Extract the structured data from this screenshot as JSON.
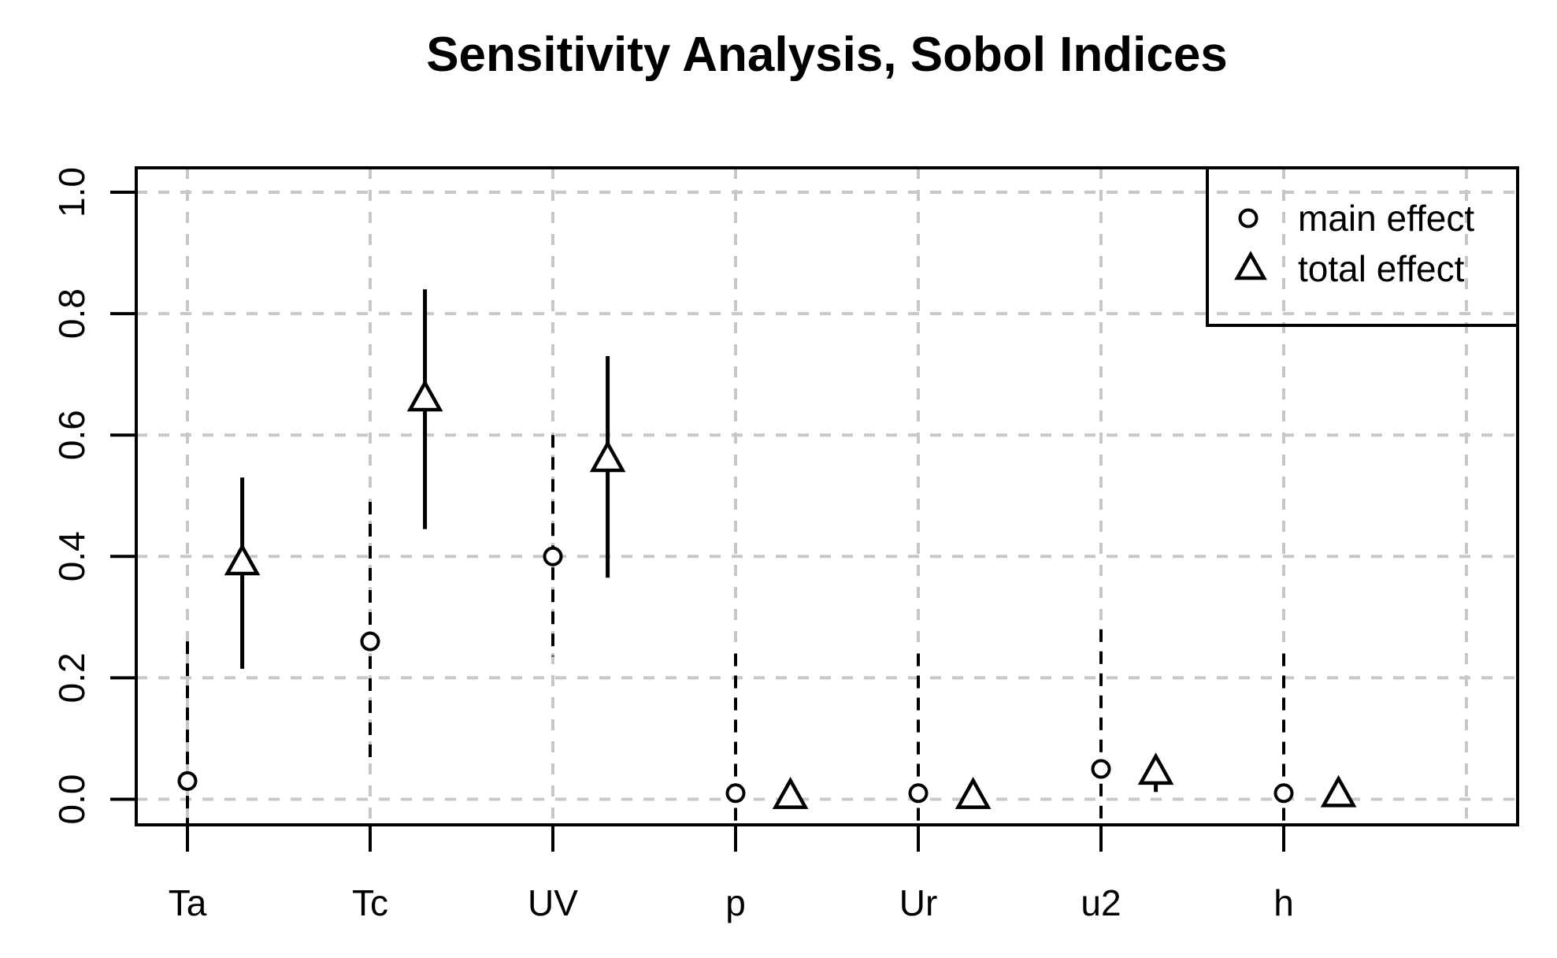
{
  "title": "Sensitivity Analysis, Sobol Indices",
  "legend": {
    "position": "top-right",
    "items": [
      {
        "marker": "circle-icon",
        "label": "main effect"
      },
      {
        "marker": "triangle-icon",
        "label": "total effect"
      }
    ]
  },
  "colors": {
    "axis": "#000000",
    "grid": "#c8c8c8",
    "marker_stroke": "#000000",
    "marker_fill": "#ffffff",
    "background": "#ffffff",
    "text": "#000000"
  },
  "chart_data": {
    "type": "scatter",
    "title": "Sensitivity Analysis, Sobol Indices",
    "xlabel": "",
    "ylabel": "",
    "categories": [
      "Ta",
      "Tc",
      "UV",
      "p",
      "Ur",
      "u2",
      "h"
    ],
    "ylim": [
      -0.042,
      1.04
    ],
    "grid": true,
    "grid_style": "dashed",
    "legend_position": "top-right",
    "y_ticks": [
      {
        "label": "1.0",
        "value": 1.0
      },
      {
        "label": "0.8",
        "value": 0.8
      },
      {
        "label": "0.6",
        "value": 0.6
      },
      {
        "label": "0.4",
        "value": 0.4
      },
      {
        "label": "0.2",
        "value": 0.2
      },
      {
        "label": "0.0",
        "value": 0.0
      }
    ],
    "x_gridline_units": [
      1,
      2,
      3,
      4,
      5,
      6,
      7,
      8
    ],
    "series": [
      {
        "name": "main effect",
        "marker": "circle",
        "x_offset_units": 0,
        "ci_style": "dashed",
        "values": [
          0.03,
          0.26,
          0.4,
          0.01,
          0.01,
          0.05,
          0.01
        ],
        "ci_low": [
          -0.05,
          0.055,
          0.235,
          -0.05,
          -0.05,
          -0.05,
          -0.05
        ],
        "ci_high": [
          0.26,
          0.49,
          0.6,
          0.24,
          0.24,
          0.28,
          0.24
        ],
        "ci_clipped_at_axis": [
          true,
          false,
          false,
          true,
          true,
          true,
          true
        ]
      },
      {
        "name": "total effect",
        "marker": "triangle",
        "x_offset_units": 0.3,
        "ci_style": "solid",
        "values": [
          0.39,
          0.66,
          0.56,
          0.005,
          0.005,
          0.045,
          0.008
        ],
        "ci_low": [
          0.215,
          0.445,
          0.365,
          null,
          null,
          0.012,
          null
        ],
        "ci_high": [
          0.53,
          0.84,
          0.73,
          null,
          null,
          0.064,
          null
        ],
        "ci_clipped_at_axis": [
          false,
          false,
          false,
          false,
          false,
          false,
          false
        ]
      }
    ]
  }
}
